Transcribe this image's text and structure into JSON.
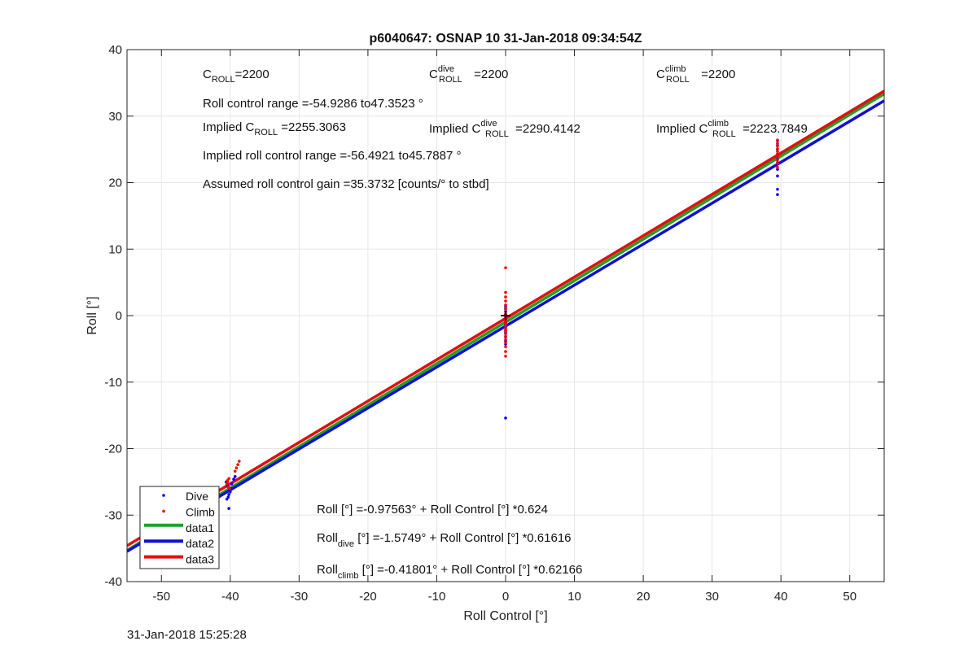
{
  "chart_data": {
    "type": "scatter",
    "title": "p6040647: OSNAP 10 31-Jan-2018 09:34:54Z",
    "xlabel": "Roll Control [°]",
    "ylabel": "Roll [°]",
    "xlim": [
      -55,
      55
    ],
    "ylim": [
      -40,
      40
    ],
    "xticks": [
      -50,
      -40,
      -30,
      -20,
      -10,
      0,
      10,
      20,
      30,
      40,
      50
    ],
    "yticks": [
      -40,
      -30,
      -20,
      -10,
      0,
      10,
      20,
      30,
      40
    ],
    "grid": true,
    "legend_position": "bottom-left",
    "colors": {
      "dive": "#0000ff",
      "climb": "#ff0000",
      "data1": "#22a022",
      "data2": "#1010d0",
      "data3": "#e01010"
    },
    "scatter_series": [
      {
        "name": "Dive",
        "color": "#0000ff",
        "points": [
          [
            -40.2,
            -26.9
          ],
          [
            -40.3,
            -27.3
          ],
          [
            -40.1,
            -26.2
          ],
          [
            -40.4,
            -25.6
          ],
          [
            -40.2,
            -29.0
          ],
          [
            -39.9,
            -26.0
          ],
          [
            -40.5,
            -27.6
          ],
          [
            -39.3,
            -24.2
          ],
          [
            -39.5,
            -24.6
          ],
          [
            -39.8,
            -25.3
          ],
          [
            -40.0,
            -26.5
          ],
          [
            -40.6,
            -25.0
          ],
          [
            0.0,
            -15.4
          ],
          [
            0.0,
            -4.3
          ],
          [
            0.0,
            -3.8
          ],
          [
            0.0,
            -3.2
          ],
          [
            0.0,
            -2.7
          ],
          [
            0.0,
            -2.2
          ],
          [
            0.0,
            -1.8
          ],
          [
            0.0,
            -1.4
          ],
          [
            0.0,
            -1.0
          ],
          [
            0.0,
            -0.6
          ],
          [
            0.0,
            -0.2
          ],
          [
            0.0,
            0.2
          ],
          [
            0.0,
            0.6
          ],
          [
            0.0,
            1.0
          ],
          [
            0.0,
            1.4
          ],
          [
            0.0,
            -2.5
          ],
          [
            39.5,
            18.2
          ],
          [
            39.5,
            19.0
          ],
          [
            39.5,
            21.0
          ],
          [
            39.5,
            22.0
          ],
          [
            39.5,
            22.8
          ],
          [
            39.5,
            23.5
          ],
          [
            39.5,
            24.2
          ],
          [
            39.5,
            25.0
          ],
          [
            39.5,
            25.6
          ],
          [
            39.5,
            26.3
          ],
          [
            39.5,
            23.0
          ]
        ]
      },
      {
        "name": "Climb",
        "color": "#ff0000",
        "points": [
          [
            -38.7,
            -21.9
          ],
          [
            -38.9,
            -22.4
          ],
          [
            -39.1,
            -22.9
          ],
          [
            -39.3,
            -23.4
          ],
          [
            -40.2,
            -24.5
          ],
          [
            -40.4,
            -25.0
          ],
          [
            -40.5,
            -25.3
          ],
          [
            -40.3,
            -25.8
          ],
          [
            -40.1,
            -26.0
          ],
          [
            -40.4,
            -24.8
          ],
          [
            0.0,
            7.2
          ],
          [
            0.0,
            3.5
          ],
          [
            0.0,
            2.8
          ],
          [
            0.0,
            2.2
          ],
          [
            0.0,
            1.6
          ],
          [
            0.0,
            1.1
          ],
          [
            0.0,
            0.6
          ],
          [
            0.0,
            0.2
          ],
          [
            0.0,
            -0.3
          ],
          [
            0.0,
            -0.7
          ],
          [
            0.0,
            -1.1
          ],
          [
            0.0,
            -1.5
          ],
          [
            0.0,
            -1.9
          ],
          [
            0.0,
            -2.3
          ],
          [
            0.0,
            -2.7
          ],
          [
            0.0,
            -3.1
          ],
          [
            0.0,
            -3.6
          ],
          [
            0.0,
            -4.1
          ],
          [
            0.0,
            -4.7
          ],
          [
            0.0,
            -5.4
          ],
          [
            0.0,
            -6.1
          ],
          [
            39.5,
            22.3
          ],
          [
            39.5,
            22.9
          ],
          [
            39.5,
            23.4
          ],
          [
            39.5,
            23.9
          ],
          [
            39.5,
            24.3
          ],
          [
            39.5,
            24.7
          ],
          [
            39.5,
            25.1
          ],
          [
            39.5,
            25.5
          ],
          [
            39.5,
            25.9
          ],
          [
            39.5,
            26.4
          ],
          [
            39.5,
            24.0
          ]
        ]
      }
    ],
    "center_marker": {
      "x": 0,
      "y": 0
    },
    "fit_lines": [
      {
        "name": "data1",
        "color": "#22a022",
        "intercept": -0.97563,
        "slope": 0.624
      },
      {
        "name": "data2",
        "color": "#1010d0",
        "intercept": -1.5749,
        "slope": 0.61616
      },
      {
        "name": "data3",
        "color": "#e01010",
        "intercept": -0.41801,
        "slope": 0.62166
      }
    ],
    "legend": [
      {
        "label": "Dive",
        "kind": "dot",
        "color": "#0000ff"
      },
      {
        "label": "Climb",
        "kind": "dot",
        "color": "#ff0000"
      },
      {
        "label": "data1",
        "kind": "line",
        "color": "#22a022"
      },
      {
        "label": "data2",
        "kind": "line",
        "color": "#1010d0"
      },
      {
        "label": "data3",
        "kind": "line",
        "color": "#e01010"
      }
    ],
    "annotations": {
      "c_roll": {
        "base": "C",
        "sub": "ROLL",
        "rest": "=2200"
      },
      "c_roll_dive": {
        "base": "C",
        "sup": "dive",
        "sub": "ROLL",
        "rest": " =2200"
      },
      "c_roll_climb": {
        "base": "C",
        "sup": "climb",
        "sub": "ROLL",
        "rest": " =2200"
      },
      "roll_control_range": "Roll control range =-54.9286 to47.3523 °",
      "implied_c_roll": {
        "prefix": "Implied C",
        "sub": "ROLL",
        "rest": " =2255.3063"
      },
      "implied_c_roll_dive": {
        "prefix": "Implied C",
        "sup": "dive",
        "sub": "ROLL",
        "rest": " =2290.4142"
      },
      "implied_c_roll_climb": {
        "prefix": "Implied C",
        "sup": "climb",
        "sub": "ROLL",
        "rest": " =2223.7849"
      },
      "implied_roll_control_range": "Implied roll control range =-56.4921 to45.7887 °",
      "assumed_gain": "Assumed roll control gain =35.3732 [counts/° to stbd]",
      "fit_all": "Roll [°] =-0.97563° + Roll Control [°] *0.624",
      "fit_dive": {
        "base": "Roll",
        "sub": "dive",
        "rest": " [°] =-1.5749° + Roll Control [°] *0.61616"
      },
      "fit_climb": {
        "base": "Roll",
        "sub": "climb",
        "rest": " [°] =-0.41801° + Roll Control [°] *0.62166"
      }
    }
  },
  "footer": {
    "timestamp": "31-Jan-2018 15:25:28"
  }
}
